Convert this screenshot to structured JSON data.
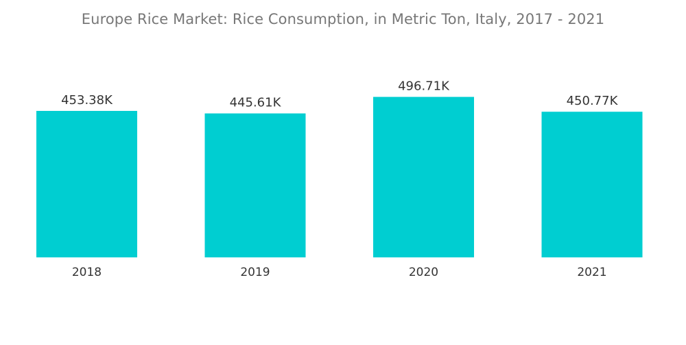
{
  "chart_data": {
    "type": "bar",
    "title": "Europe Rice Market: Rice Consumption, in Metric Ton, Italy, 2017 - 2021",
    "xlabel": "",
    "ylabel": "",
    "categories": [
      "2018",
      "2019",
      "2020",
      "2021"
    ],
    "values": [
      453.38,
      445.61,
      496.71,
      450.77
    ],
    "value_labels": [
      "453.38K",
      "445.61K",
      "496.71K",
      "450.77K"
    ],
    "unit": "K",
    "ylim": [
      0,
      500
    ],
    "grid": false,
    "legend": "none",
    "bar_color": "#00CED1"
  }
}
